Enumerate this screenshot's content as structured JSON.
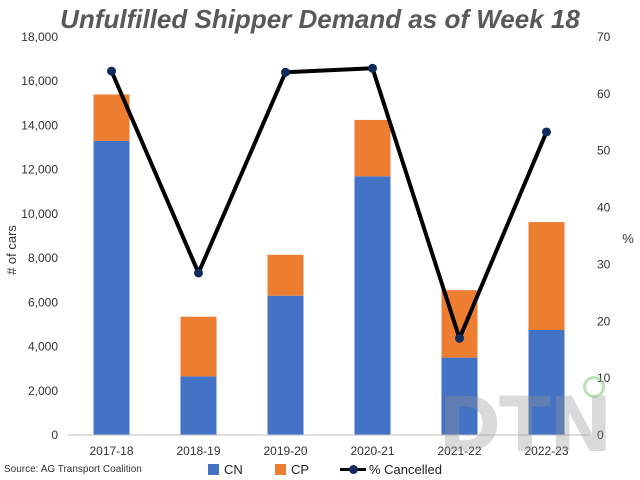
{
  "chart_data": {
    "type": "bar",
    "stacked": true,
    "title": "Unfulfilled Shipper Demand as of Week 18",
    "categories": [
      "2017-18",
      "2018-19",
      "2019-20",
      "2020-21",
      "2021-22",
      "2022-23"
    ],
    "series": [
      {
        "name": "CN",
        "axis": "left",
        "color": "#4472c4",
        "values": [
          13300,
          2650,
          6300,
          11700,
          3500,
          4750
        ]
      },
      {
        "name": "CP",
        "axis": "left",
        "color": "#ed7d31",
        "values": [
          2100,
          2700,
          1850,
          2550,
          3050,
          4880
        ]
      },
      {
        "name": "% Cancelled",
        "type": "line",
        "axis": "right",
        "color": "#000000",
        "marker_color": "#0f2a5c",
        "values": [
          64.0,
          28.5,
          63.8,
          64.5,
          17.0,
          53.3
        ]
      }
    ],
    "ylabel": "# of cars",
    "ylim": [
      0,
      18000
    ],
    "yticks": [
      "0",
      "2,000",
      "4,000",
      "6,000",
      "8,000",
      "10,000",
      "12,000",
      "14,000",
      "16,000",
      "18,000"
    ],
    "y2label": "%",
    "y2lim": [
      0,
      70
    ],
    "y2ticks": [
      "0",
      "10",
      "20",
      "30",
      "40",
      "50",
      "60",
      "70"
    ],
    "legend": "bottom",
    "grid": false
  },
  "source": "Source: AG Transport Coalition",
  "watermark": "DTN"
}
